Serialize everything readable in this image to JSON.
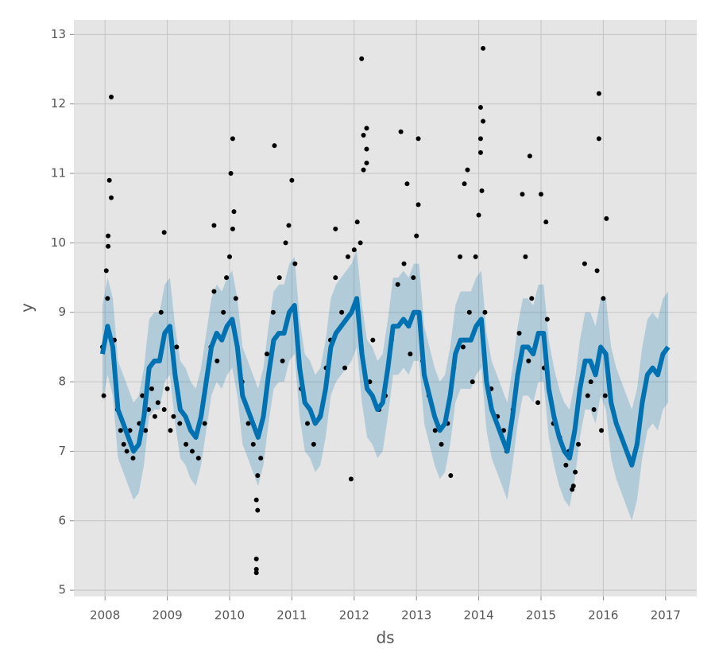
{
  "chart_data": {
    "type": "forecast",
    "xlabel": "ds",
    "ylabel": "y",
    "xlim": [
      2007.5,
      2017.5
    ],
    "ylim": [
      4.91,
      13.21
    ],
    "xticks": [
      2008,
      2009,
      2010,
      2011,
      2012,
      2013,
      2014,
      2015,
      2016,
      2017
    ],
    "yticks": [
      5,
      6,
      7,
      8,
      9,
      10,
      11,
      12,
      13
    ],
    "grid": true,
    "forecast": {
      "color": "#0072B2",
      "x": [
        2007.958,
        2008.042,
        2008.125,
        2008.208,
        2008.292,
        2008.375,
        2008.458,
        2008.542,
        2008.625,
        2008.708,
        2008.792,
        2008.875,
        2008.958,
        2009.042,
        2009.125,
        2009.208,
        2009.292,
        2009.375,
        2009.458,
        2009.542,
        2009.625,
        2009.708,
        2009.792,
        2009.875,
        2009.958,
        2010.042,
        2010.125,
        2010.208,
        2010.292,
        2010.375,
        2010.458,
        2010.542,
        2010.625,
        2010.708,
        2010.792,
        2010.875,
        2010.958,
        2011.042,
        2011.125,
        2011.208,
        2011.292,
        2011.375,
        2011.458,
        2011.542,
        2011.625,
        2011.708,
        2011.792,
        2011.875,
        2011.958,
        2012.042,
        2012.125,
        2012.208,
        2012.292,
        2012.375,
        2012.458,
        2012.542,
        2012.625,
        2012.708,
        2012.792,
        2012.875,
        2012.958,
        2013.042,
        2013.125,
        2013.208,
        2013.292,
        2013.375,
        2013.458,
        2013.542,
        2013.625,
        2013.708,
        2013.792,
        2013.875,
        2013.958,
        2014.042,
        2014.125,
        2014.208,
        2014.292,
        2014.375,
        2014.458,
        2014.542,
        2014.625,
        2014.708,
        2014.792,
        2014.875,
        2014.958,
        2015.042,
        2015.125,
        2015.208,
        2015.292,
        2015.375,
        2015.458,
        2015.542,
        2015.625,
        2015.708,
        2015.792,
        2015.875,
        2015.958,
        2016.042,
        2016.125,
        2016.208,
        2016.292,
        2016.375,
        2016.458,
        2016.542,
        2016.625,
        2016.708,
        2016.792,
        2016.875,
        2016.958,
        2017.042
      ],
      "yhat": [
        8.4,
        8.8,
        8.5,
        7.6,
        7.4,
        7.2,
        7.0,
        7.1,
        7.5,
        8.2,
        8.3,
        8.3,
        8.7,
        8.8,
        8.1,
        7.6,
        7.5,
        7.3,
        7.2,
        7.5,
        8.0,
        8.5,
        8.7,
        8.6,
        8.8,
        8.9,
        8.5,
        7.8,
        7.6,
        7.4,
        7.2,
        7.5,
        8.1,
        8.6,
        8.7,
        8.7,
        9.0,
        9.1,
        8.2,
        7.7,
        7.6,
        7.4,
        7.5,
        7.9,
        8.5,
        8.7,
        8.8,
        8.9,
        9.0,
        9.2,
        8.4,
        7.9,
        7.8,
        7.6,
        7.7,
        8.2,
        8.8,
        8.8,
        8.9,
        8.8,
        9.0,
        9.0,
        8.1,
        7.8,
        7.5,
        7.3,
        7.4,
        7.8,
        8.4,
        8.6,
        8.6,
        8.6,
        8.8,
        8.9,
        8.0,
        7.6,
        7.4,
        7.2,
        7.0,
        7.5,
        8.1,
        8.5,
        8.5,
        8.4,
        8.7,
        8.7,
        7.9,
        7.5,
        7.2,
        7.0,
        6.9,
        7.3,
        7.9,
        8.3,
        8.3,
        8.1,
        8.5,
        8.4,
        7.7,
        7.4,
        7.2,
        7.0,
        6.8,
        7.1,
        7.7,
        8.1,
        8.2,
        8.1,
        8.4,
        8.5
      ],
      "yhat_lower": [
        7.7,
        8.1,
        7.8,
        6.9,
        6.7,
        6.5,
        6.3,
        6.4,
        6.8,
        7.5,
        7.6,
        7.6,
        8.0,
        8.1,
        7.4,
        6.9,
        6.8,
        6.6,
        6.5,
        6.8,
        7.3,
        7.8,
        8.0,
        7.9,
        8.1,
        8.2,
        7.8,
        7.1,
        6.9,
        6.7,
        6.5,
        6.8,
        7.4,
        7.9,
        8.0,
        8.0,
        8.3,
        8.4,
        7.5,
        7.0,
        6.9,
        6.7,
        6.8,
        7.2,
        7.8,
        8.0,
        8.1,
        8.2,
        8.3,
        8.5,
        7.7,
        7.2,
        7.1,
        6.9,
        7.0,
        7.5,
        8.1,
        8.1,
        8.2,
        8.1,
        8.3,
        8.3,
        7.4,
        7.1,
        6.8,
        6.6,
        6.7,
        7.1,
        7.7,
        7.9,
        7.9,
        7.9,
        8.1,
        8.2,
        7.3,
        6.9,
        6.7,
        6.5,
        6.3,
        6.8,
        7.4,
        7.8,
        7.8,
        7.7,
        8.0,
        8.0,
        7.2,
        6.8,
        6.5,
        6.3,
        6.2,
        6.6,
        7.2,
        7.6,
        7.6,
        7.4,
        7.8,
        7.6,
        6.9,
        6.6,
        6.4,
        6.2,
        6.0,
        6.3,
        6.9,
        7.3,
        7.4,
        7.3,
        7.6,
        7.7
      ],
      "yhat_upper": [
        9.1,
        9.5,
        9.2,
        8.3,
        8.1,
        7.9,
        7.7,
        7.8,
        8.2,
        8.9,
        9.0,
        9.0,
        9.4,
        9.5,
        8.8,
        8.3,
        8.2,
        8.0,
        7.9,
        8.2,
        8.7,
        9.2,
        9.4,
        9.3,
        9.5,
        9.6,
        9.2,
        8.5,
        8.3,
        8.1,
        7.9,
        8.2,
        8.8,
        9.3,
        9.4,
        9.4,
        9.7,
        9.8,
        8.9,
        8.4,
        8.3,
        8.1,
        8.2,
        8.6,
        9.2,
        9.4,
        9.5,
        9.6,
        9.7,
        9.9,
        9.1,
        8.6,
        8.5,
        8.3,
        8.4,
        8.9,
        9.5,
        9.5,
        9.6,
        9.5,
        9.7,
        9.7,
        8.8,
        8.5,
        8.2,
        8.0,
        8.1,
        8.5,
        9.1,
        9.3,
        9.3,
        9.3,
        9.5,
        9.6,
        8.7,
        8.3,
        8.1,
        7.9,
        7.7,
        8.2,
        8.8,
        9.2,
        9.2,
        9.1,
        9.4,
        9.4,
        8.6,
        8.2,
        7.9,
        7.7,
        7.6,
        8.0,
        8.6,
        9.0,
        9.0,
        8.8,
        9.2,
        9.2,
        8.5,
        8.2,
        8.0,
        7.8,
        7.6,
        7.9,
        8.5,
        8.9,
        9.0,
        8.9,
        9.2,
        9.3
      ]
    },
    "observed": {
      "color": "#000000",
      "x": [
        2008.1,
        2008.07,
        2008.1,
        2008.05,
        2008.05,
        2008.95,
        2009.75,
        2010.05,
        2010.02,
        2010.07,
        2010.05,
        2010.43,
        2010.43,
        2010.43,
        2010.45,
        2010.43,
        2010.45,
        2010.72,
        2011.0,
        2010.95,
        2011.7,
        2011.95,
        2012.12,
        2012.2,
        2012.15,
        2012.2,
        2012.2,
        2012.15,
        2012.75,
        2012.85,
        2013.03,
        2013.03,
        2013.55,
        2014.07,
        2014.03,
        2014.07,
        2014.03,
        2014.03,
        2013.82,
        2014.05,
        2013.77,
        2014.82,
        2014.7,
        2015.0,
        2015.08,
        2015.93,
        2015.93,
        2016.05,
        2015.5,
        2015.52,
        2007.96,
        2007.98,
        2008.02,
        2008.04,
        2008.15,
        2008.2,
        2008.25,
        2008.3,
        2008.35,
        2008.4,
        2008.45,
        2008.55,
        2008.6,
        2008.65,
        2008.7,
        2008.75,
        2008.8,
        2008.85,
        2008.9,
        2008.95,
        2009.0,
        2009.05,
        2009.1,
        2009.15,
        2009.2,
        2009.3,
        2009.4,
        2009.5,
        2009.6,
        2009.7,
        2009.75,
        2009.8,
        2009.9,
        2009.95,
        2010.0,
        2010.1,
        2010.2,
        2010.3,
        2010.38,
        2010.5,
        2010.6,
        2010.7,
        2010.8,
        2010.85,
        2010.9,
        2011.05,
        2011.15,
        2011.25,
        2011.35,
        2011.45,
        2011.55,
        2011.62,
        2011.7,
        2011.8,
        2011.85,
        2011.9,
        2012.0,
        2012.05,
        2012.1,
        2012.25,
        2012.3,
        2012.4,
        2012.5,
        2012.6,
        2012.7,
        2012.8,
        2012.9,
        2012.95,
        2013.0,
        2013.1,
        2013.2,
        2013.3,
        2013.4,
        2013.5,
        2013.6,
        2013.7,
        2013.75,
        2013.85,
        2013.9,
        2013.95,
        2014.0,
        2014.1,
        2014.2,
        2014.3,
        2014.4,
        2014.45,
        2014.55,
        2014.65,
        2014.75,
        2014.8,
        2014.85,
        2014.95,
        2015.05,
        2015.1,
        2015.2,
        2015.3,
        2015.4,
        2015.45,
        2015.55,
        2015.6,
        2015.7,
        2015.75,
        2015.8,
        2015.85,
        2015.9,
        2015.97,
        2016.0,
        2016.03
      ],
      "y": [
        12.1,
        10.9,
        10.65,
        10.1,
        9.95,
        10.15,
        10.25,
        11.5,
        11.0,
        10.45,
        10.2,
        5.45,
        5.3,
        5.25,
        6.15,
        6.3,
        6.65,
        11.4,
        10.9,
        10.25,
        10.2,
        6.6,
        12.65,
        11.65,
        11.55,
        11.35,
        11.15,
        11.05,
        11.6,
        10.85,
        11.5,
        10.55,
        6.65,
        12.8,
        11.95,
        11.75,
        11.5,
        11.3,
        11.05,
        10.75,
        10.85,
        11.25,
        10.7,
        10.7,
        10.3,
        12.15,
        11.5,
        10.35,
        6.45,
        6.5,
        8.5,
        7.8,
        9.6,
        9.2,
        8.6,
        7.6,
        7.3,
        7.1,
        7.0,
        7.3,
        6.9,
        7.4,
        7.8,
        7.3,
        7.6,
        7.9,
        7.5,
        7.7,
        9.0,
        7.6,
        7.9,
        7.3,
        7.5,
        8.5,
        7.4,
        7.1,
        7.0,
        6.9,
        7.4,
        8.5,
        9.3,
        8.3,
        9.0,
        9.5,
        9.8,
        9.2,
        8.0,
        7.4,
        7.1,
        6.9,
        8.4,
        9.0,
        9.5,
        8.3,
        10.0,
        9.7,
        7.9,
        7.4,
        7.1,
        7.5,
        8.2,
        8.6,
        9.5,
        9.0,
        8.2,
        9.8,
        9.9,
        10.3,
        10.0,
        8.0,
        8.6,
        7.6,
        7.8,
        8.6,
        9.4,
        9.7,
        8.4,
        9.5,
        10.1,
        8.3,
        7.8,
        7.3,
        7.1,
        7.4,
        8.2,
        9.8,
        8.5,
        9.0,
        8.0,
        9.8,
        10.4,
        9.0,
        7.9,
        7.5,
        7.3,
        7.0,
        7.6,
        8.7,
        9.8,
        8.3,
        9.2,
        7.7,
        8.2,
        8.9,
        7.4,
        7.2,
        6.8,
        7.0,
        6.7,
        7.1,
        9.7,
        7.8,
        8.0,
        7.6,
        9.6,
        7.3,
        9.2,
        7.8
      ]
    }
  }
}
